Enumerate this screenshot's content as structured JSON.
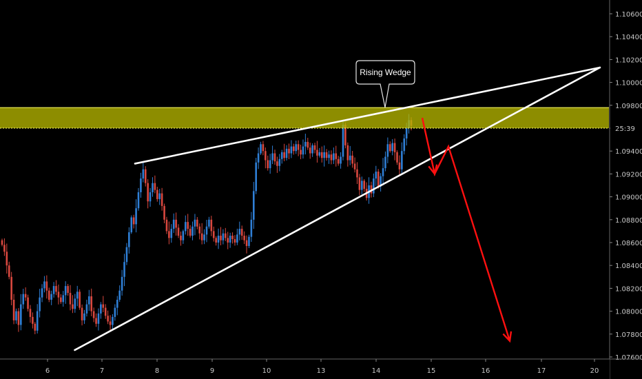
{
  "chart_data": {
    "type": "candlestick",
    "instrument_hint": "price chart",
    "y_axis": {
      "ticks": [
        "1.10600",
        "1.10400",
        "1.10200",
        "1.10000",
        "1.09800",
        "1.09600",
        "1.09400",
        "1.09200",
        "1.09000",
        "1.08800",
        "1.08600",
        "1.08400",
        "1.08200",
        "1.08000",
        "1.07800",
        "1.07600"
      ],
      "ylim": [
        1.0752,
        1.1078
      ]
    },
    "x_axis": {
      "ticks": [
        "6",
        "7",
        "8",
        "9",
        "10",
        "13",
        "14",
        "15",
        "16",
        "17",
        "20"
      ]
    },
    "countdown_label": "25:39",
    "resistance_zone": {
      "low": 1.096,
      "high": 1.0978,
      "color": "#b5b500"
    },
    "callout": {
      "text": "Rising Wedge"
    },
    "wedge_upper": [
      [
        1.0929,
        "7.6"
      ],
      [
        1.1013,
        "20.1"
      ]
    ],
    "wedge_lower": [
      [
        1.0766,
        "6.5"
      ],
      [
        1.1013,
        "20.1"
      ]
    ],
    "projection": [
      1.0969,
      1.092,
      1.0944,
      1.0774
    ],
    "colors": {
      "background": "#000000",
      "bull": "#2f7fd6",
      "bear": "#d9483f",
      "wedge": "#ffffff",
      "projection": "#ff1010",
      "zone": "#b5b500",
      "zone_line": "#ffff66"
    },
    "closes": [
      1.0858,
      1.0852,
      1.084,
      1.083,
      1.081,
      1.0792,
      1.08,
      1.0788,
      1.0806,
      1.0815,
      1.0812,
      1.0802,
      1.0795,
      1.0789,
      1.0783,
      1.08,
      1.0812,
      1.082,
      1.0826,
      1.0818,
      1.081,
      1.0815,
      1.0822,
      1.0817,
      1.0812,
      1.0808,
      1.0814,
      1.0822,
      1.0816,
      1.0806,
      1.0802,
      1.0811,
      1.0817,
      1.0803,
      1.0792,
      1.0798,
      1.0806,
      1.0813,
      1.08,
      1.0794,
      1.0789,
      1.0798,
      1.0806,
      1.0803,
      1.0796,
      1.0791,
      1.0788,
      1.0795,
      1.0803,
      1.081,
      1.0818,
      1.083,
      1.0843,
      1.0856,
      1.0869,
      1.0882,
      1.0876,
      1.089,
      1.0904,
      1.0916,
      1.0924,
      1.0912,
      1.0896,
      1.0904,
      1.0912,
      1.0906,
      1.0898,
      1.0903,
      1.0892,
      1.088,
      1.087,
      1.0864,
      1.0872,
      1.088,
      1.0873,
      1.0866,
      1.0862,
      1.087,
      1.0878,
      1.0872,
      1.0866,
      1.0874,
      1.088,
      1.0874,
      1.0868,
      1.0862,
      1.0867,
      1.0874,
      1.088,
      1.087,
      1.0864,
      1.086,
      1.0866,
      1.0862,
      1.0868,
      1.0864,
      1.086,
      1.0866,
      1.0863,
      1.086,
      1.0867,
      1.0872,
      1.0866,
      1.0862,
      1.0857,
      1.0865,
      1.088,
      1.0905,
      1.093,
      1.0938,
      1.0946,
      1.094,
      1.0932,
      1.0925,
      1.0932,
      1.0938,
      1.0931,
      1.0927,
      1.0933,
      1.0939,
      1.0934,
      1.0942,
      1.0938,
      1.0944,
      1.094,
      1.0946,
      1.0941,
      1.0937,
      1.0944,
      1.0948,
      1.0943,
      1.0938,
      1.0945,
      1.0941,
      1.0936,
      1.0939,
      1.0934,
      1.0939,
      1.0934,
      1.0937,
      1.0932,
      1.0938,
      1.0933,
      1.0929,
      1.0935,
      1.0963,
      1.0945,
      1.0932,
      1.0936,
      1.0929,
      1.0924,
      1.0917,
      1.0906,
      1.0914,
      1.0907,
      1.0899,
      1.091,
      1.0903,
      1.0916,
      1.0922,
      1.0909,
      1.0918,
      1.0925,
      1.0935,
      1.0946,
      1.094,
      1.0947,
      1.0939,
      1.093,
      1.0924,
      1.094,
      1.0951,
      1.096,
      1.0967,
      1.0962
    ]
  }
}
